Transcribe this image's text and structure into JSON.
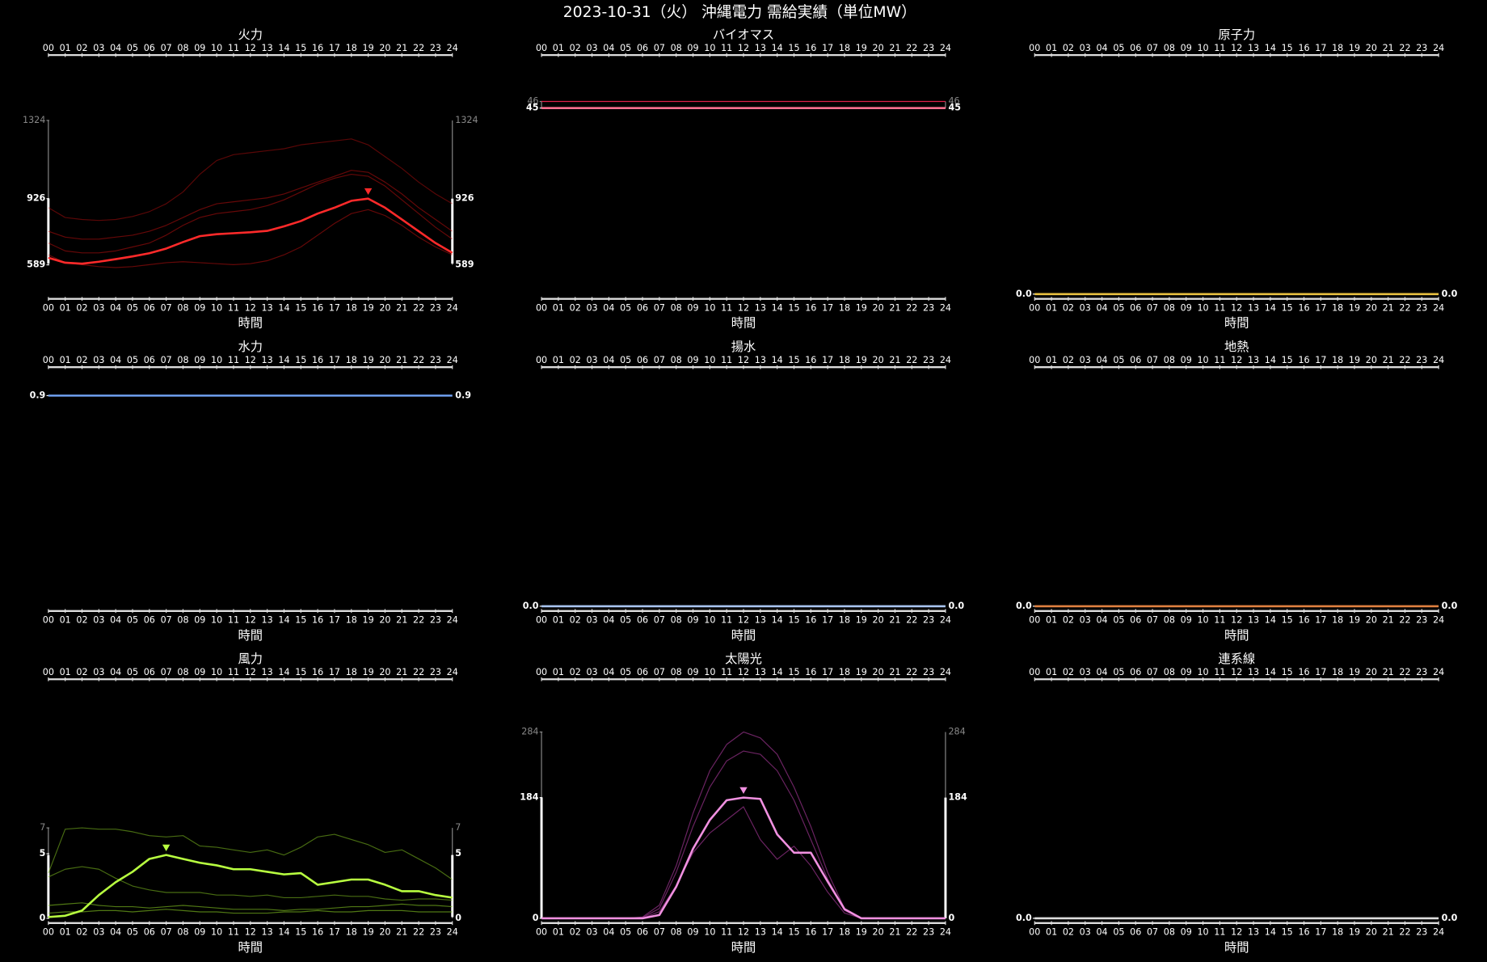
{
  "title": "2023-10-31（火） 沖縄電力 需給実績（単位MW）",
  "hours": [
    "00",
    "01",
    "02",
    "03",
    "04",
    "05",
    "06",
    "07",
    "08",
    "09",
    "10",
    "11",
    "12",
    "13",
    "14",
    "15",
    "16",
    "17",
    "18",
    "19",
    "20",
    "21",
    "22",
    "23",
    "24"
  ],
  "x_label": "時間",
  "chart_data": [
    {
      "type": "line",
      "title": "火力",
      "ylim": [
        440,
        1512
      ],
      "yticks": [
        1324,
        926,
        589
      ],
      "ytick_colors": [
        "#888888",
        "#ffffff",
        "#ffffff"
      ],
      "series": [
        {
          "color": "#ff2a2a",
          "values": [
            625,
            600,
            595,
            605,
            618,
            632,
            648,
            672,
            705,
            735,
            745,
            750,
            755,
            762,
            785,
            812,
            850,
            880,
            915,
            926,
            880,
            820,
            760,
            700,
            650
          ]
        },
        {
          "color": "#cc101070",
          "values": [
            880,
            830,
            820,
            815,
            820,
            835,
            860,
            900,
            960,
            1050,
            1120,
            1150,
            1160,
            1170,
            1180,
            1200,
            1210,
            1220,
            1230,
            1200,
            1140,
            1080,
            1010,
            950,
            900
          ]
        },
        {
          "color": "#cc101080",
          "values": [
            700,
            660,
            650,
            650,
            660,
            680,
            700,
            740,
            790,
            830,
            850,
            860,
            870,
            890,
            920,
            960,
            1000,
            1030,
            1050,
            1040,
            990,
            920,
            850,
            780,
            720
          ]
        },
        {
          "color": "#cc101080",
          "values": [
            640,
            600,
            590,
            580,
            575,
            580,
            590,
            600,
            605,
            600,
            595,
            590,
            595,
            610,
            640,
            680,
            740,
            800,
            850,
            870,
            840,
            790,
            730,
            680,
            640
          ]
        },
        {
          "color": "#cc101080",
          "values": [
            760,
            730,
            720,
            720,
            730,
            740,
            760,
            790,
            830,
            870,
            900,
            910,
            920,
            930,
            950,
            980,
            1010,
            1040,
            1070,
            1060,
            1010,
            950,
            880,
            820,
            760
          ]
        }
      ]
    },
    {
      "type": "line",
      "title": "バイオマス",
      "ylim": [
        17,
        48.7
      ],
      "yticks": [
        46,
        45
      ],
      "ytick_colors": [
        "#888888",
        "#ffffff"
      ],
      "series": [
        {
          "color": "#ff6f8f",
          "values": [
            45,
            45,
            45,
            45,
            45,
            45,
            45,
            45,
            45,
            45,
            45,
            45,
            45,
            45,
            45,
            45,
            45,
            45,
            45,
            45,
            45,
            45,
            45,
            45,
            45
          ]
        },
        {
          "color": "#e0204a",
          "values": [
            46,
            46,
            46,
            46,
            46,
            46,
            46,
            46,
            46,
            46,
            46,
            46,
            46,
            46,
            46,
            46,
            46,
            46,
            46,
            46,
            46,
            46,
            46,
            46,
            46
          ]
        }
      ]
    },
    {
      "type": "line",
      "title": "原子力",
      "ylim": [
        0,
        1
      ],
      "yticks": [
        {
          "value": 0,
          "label": "0.0"
        }
      ],
      "ytick_colors": [
        "#ffffff"
      ],
      "series": [
        {
          "color": "#e8c040",
          "values": [
            0,
            0,
            0,
            0,
            0,
            0,
            0,
            0,
            0,
            0,
            0,
            0,
            0,
            0,
            0,
            0,
            0,
            0,
            0,
            0,
            0,
            0,
            0,
            0,
            0
          ]
        }
      ]
    },
    {
      "type": "line",
      "title": "水力",
      "ylim": [
        0,
        0.9
      ],
      "yticks": [
        0.9
      ],
      "ytick_colors": [
        "#ffffff"
      ],
      "series": [
        {
          "color": "#6fa0f0",
          "values": [
            0.9,
            0.9,
            0.9,
            0.9,
            0.9,
            0.9,
            0.9,
            0.9,
            0.9,
            0.9,
            0.9,
            0.9,
            0.9,
            0.9,
            0.9,
            0.9,
            0.9,
            0.9,
            0.9,
            0.9,
            0.9,
            0.9,
            0.9,
            0.9,
            0.9
          ]
        }
      ]
    },
    {
      "type": "line",
      "title": "揚水",
      "ylim": [
        0,
        1
      ],
      "yticks": [
        {
          "value": 0,
          "label": "0.0"
        }
      ],
      "ytick_colors": [
        "#ffffff"
      ],
      "series": [
        {
          "color": "#a8c4f0",
          "values": [
            0,
            0,
            0,
            0,
            0,
            0,
            0,
            0,
            0,
            0,
            0,
            0,
            0,
            0,
            0,
            0,
            0,
            0,
            0,
            0,
            0,
            0,
            0,
            0,
            0
          ]
        }
      ]
    },
    {
      "type": "line",
      "title": "地熱",
      "ylim": [
        0,
        1
      ],
      "yticks": [
        {
          "value": 0,
          "label": "0.0"
        }
      ],
      "ytick_colors": [
        "#ffffff"
      ],
      "series": [
        {
          "color": "#e08040",
          "values": [
            0,
            0,
            0,
            0,
            0,
            0,
            0,
            0,
            0,
            0,
            0,
            0,
            0,
            0,
            0,
            0,
            0,
            0,
            0,
            0,
            0,
            0,
            0,
            0,
            0
          ]
        }
      ]
    },
    {
      "type": "line",
      "title": "風力",
      "ylim": [
        0,
        16.3
      ],
      "yticks": [
        7,
        5,
        0
      ],
      "ytick_colors": [
        "#888888",
        "#ffffff",
        "#ffffff"
      ],
      "series": [
        {
          "color": "#b8ff40",
          "values": [
            0.1,
            0.2,
            0.6,
            1.8,
            2.8,
            3.6,
            4.6,
            4.9,
            4.6,
            4.3,
            4.1,
            3.8,
            3.8,
            3.6,
            3.4,
            3.5,
            2.6,
            2.8,
            3.0,
            3.0,
            2.6,
            2.1,
            2.1,
            1.8,
            1.6
          ]
        },
        {
          "color": "#80c02090",
          "values": [
            3.5,
            6.9,
            7.0,
            6.9,
            6.9,
            6.7,
            6.4,
            6.3,
            6.4,
            5.6,
            5.5,
            5.3,
            5.1,
            5.3,
            4.9,
            5.5,
            6.3,
            6.5,
            6.1,
            5.7,
            5.1,
            5.3,
            4.6,
            3.9,
            3.0
          ]
        },
        {
          "color": "#80c02090",
          "values": [
            3.2,
            3.8,
            4.0,
            3.8,
            3.1,
            2.5,
            2.2,
            2.0,
            2.0,
            2.0,
            1.8,
            1.8,
            1.7,
            1.8,
            1.6,
            1.6,
            1.7,
            1.8,
            1.7,
            1.7,
            1.5,
            1.4,
            1.5,
            1.5,
            1.4
          ]
        },
        {
          "color": "#80c020a0",
          "values": [
            1.0,
            1.1,
            1.2,
            1.0,
            0.9,
            0.9,
            0.8,
            0.9,
            1.0,
            0.9,
            0.8,
            0.7,
            0.7,
            0.7,
            0.6,
            0.7,
            0.7,
            0.8,
            0.9,
            0.9,
            1.0,
            1.1,
            1.0,
            1.0,
            0.9
          ]
        },
        {
          "color": "#80c020a0",
          "values": [
            0.4,
            0.5,
            0.5,
            0.6,
            0.6,
            0.5,
            0.6,
            0.7,
            0.6,
            0.5,
            0.5,
            0.4,
            0.4,
            0.4,
            0.5,
            0.5,
            0.6,
            0.5,
            0.5,
            0.6,
            0.6,
            0.6,
            0.5,
            0.5,
            0.5
          ]
        }
      ]
    },
    {
      "type": "line",
      "title": "太陽光",
      "ylim": [
        0,
        321
      ],
      "yticks": [
        284,
        184,
        0
      ],
      "ytick_colors": [
        "#888888",
        "#ffffff",
        "#ffffff"
      ],
      "series": [
        {
          "color": "#f090e0",
          "values": [
            0,
            0,
            0,
            0,
            0,
            0,
            0,
            5,
            48,
            106,
            150,
            180,
            184,
            182,
            128,
            100,
            100,
            56,
            14,
            0,
            0,
            0,
            0,
            0,
            0
          ]
        },
        {
          "color": "#c040b090",
          "values": [
            0,
            0,
            0,
            0,
            0,
            0,
            2,
            20,
            80,
            160,
            225,
            265,
            284,
            275,
            250,
            200,
            140,
            70,
            15,
            1,
            0,
            0,
            0,
            0,
            0
          ]
        },
        {
          "color": "#c040b090",
          "values": [
            0,
            0,
            0,
            0,
            0,
            0,
            1,
            15,
            70,
            140,
            200,
            240,
            255,
            250,
            225,
            180,
            120,
            60,
            12,
            0,
            0,
            0,
            0,
            0,
            0
          ]
        },
        {
          "color": "#c040b090",
          "values": [
            0,
            0,
            0,
            0,
            0,
            0,
            0,
            10,
            50,
            100,
            130,
            150,
            170,
            120,
            90,
            110,
            80,
            40,
            8,
            0,
            0,
            0,
            0,
            0,
            0
          ]
        }
      ]
    },
    {
      "type": "line",
      "title": "連系線",
      "ylim": [
        0,
        1
      ],
      "yticks": [
        {
          "value": 0,
          "label": "0.0"
        }
      ],
      "ytick_colors": [
        "#ffffff"
      ],
      "series": [
        {
          "color": "#dddddd",
          "values": [
            0,
            0,
            0,
            0,
            0,
            0,
            0,
            0,
            0,
            0,
            0,
            0,
            0,
            0,
            0,
            0,
            0,
            0,
            0,
            0,
            0,
            0,
            0,
            0,
            0
          ]
        }
      ]
    }
  ]
}
